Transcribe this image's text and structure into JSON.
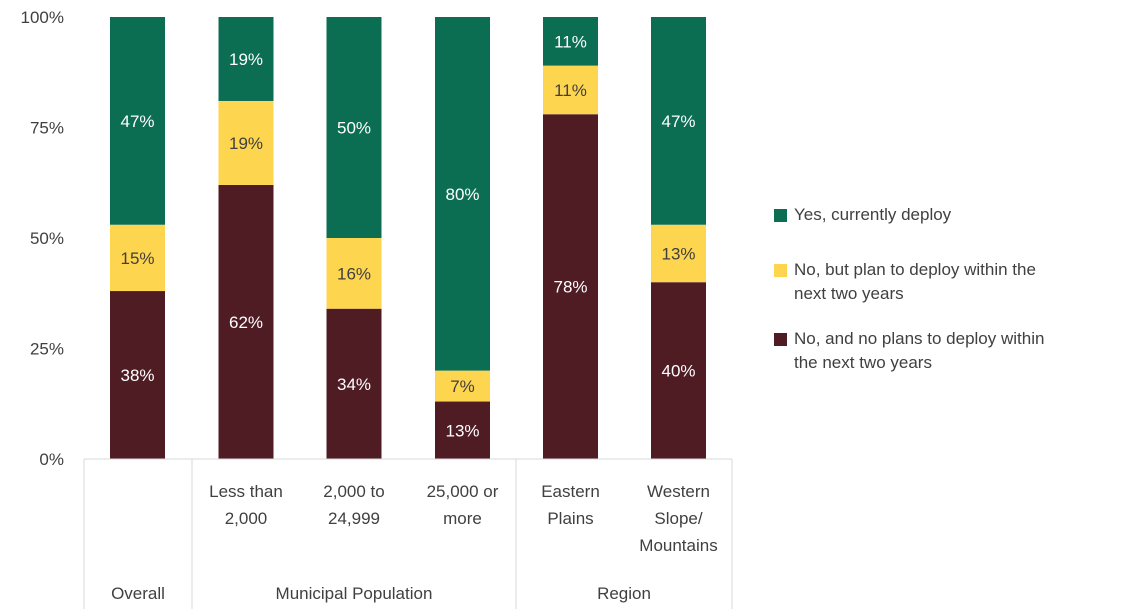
{
  "chart_data": {
    "type": "bar",
    "stacked": true,
    "orientation": "vertical",
    "categories": [
      "Overall",
      "Less than 2,000",
      "2,000 to 24,999",
      "25,000 or more",
      "Eastern Plains",
      "Western Slope/ Mountains"
    ],
    "category_label_lines": [
      [],
      [
        "Less than",
        "2,000"
      ],
      [
        "2,000 to",
        "24,999"
      ],
      [
        "25,000 or",
        "more"
      ],
      [
        "Eastern",
        "Plains"
      ],
      [
        "Western",
        "Slope/",
        "Mountains"
      ]
    ],
    "groups": [
      {
        "label": "Overall",
        "categories": [
          0
        ]
      },
      {
        "label": "Municipal Population",
        "categories": [
          1,
          2,
          3
        ]
      },
      {
        "label": "Region",
        "categories": [
          4,
          5
        ]
      }
    ],
    "series": [
      {
        "name": "No, and no plans to deploy within the next two years",
        "color": "#4f1c24",
        "label_color": "#ffffff",
        "values": [
          38,
          62,
          34,
          13,
          78,
          40
        ],
        "labels": [
          "38%",
          "62%",
          "34%",
          "13%",
          "78%",
          "40%"
        ]
      },
      {
        "name": "No, but plan to deploy within the next two years",
        "color": "#fdd54e",
        "label_color": "#404040",
        "values": [
          15,
          19,
          16,
          7,
          11,
          13
        ],
        "labels": [
          "15%",
          "19%",
          "16%",
          "7%",
          "11%",
          "13%"
        ]
      },
      {
        "name": "Yes, currently deploy",
        "color": "#0b6e53",
        "label_color": "#ffffff",
        "values": [
          47,
          19,
          50,
          80,
          11,
          47
        ],
        "labels": [
          "47%",
          "19%",
          "50%",
          "80%",
          "11%",
          "47%"
        ]
      }
    ],
    "y_ticks": [
      {
        "value": 0,
        "label": "0%"
      },
      {
        "value": 25,
        "label": "25%"
      },
      {
        "value": 50,
        "label": "50%"
      },
      {
        "value": 75,
        "label": "75%"
      },
      {
        "value": 100,
        "label": "100%"
      }
    ],
    "ylim": [
      0,
      100
    ],
    "grid": false,
    "legend_position": "right",
    "legend_order": [
      "Yes, currently deploy",
      "No, but plan to deploy within the next two years",
      "No, and no plans to deploy within the next two years"
    ],
    "legend_label_lines": [
      [
        "Yes, currently deploy"
      ],
      [
        "No, but plan to deploy within the",
        "next two years"
      ],
      [
        "No, and no plans to deploy within",
        "the next two years"
      ]
    ]
  }
}
